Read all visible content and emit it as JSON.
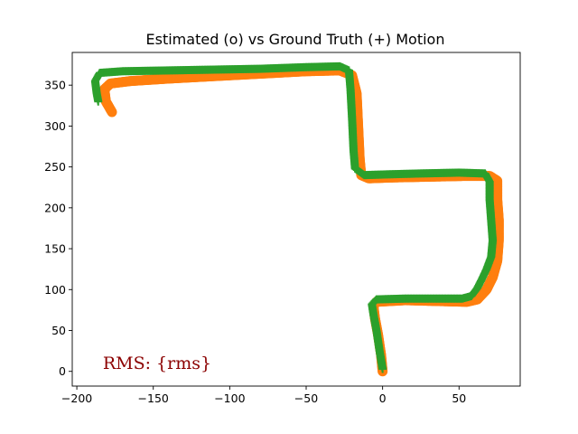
{
  "chart_data": {
    "type": "scatter",
    "title": "Estimated (o) vs Ground Truth (+) Motion",
    "xlabel": "",
    "ylabel": "",
    "xlim": [
      -203,
      90
    ],
    "ylim": [
      -18,
      390
    ],
    "xticks": [
      -200,
      -150,
      -100,
      -50,
      0,
      50
    ],
    "yticks": [
      0,
      50,
      100,
      150,
      200,
      250,
      300,
      350
    ],
    "grid": false,
    "legend": "none",
    "annotation": {
      "text": "RMS: {rms}",
      "color": "#8b0000",
      "x": -183,
      "y": 5
    },
    "series": [
      {
        "marker": "o",
        "color": "#ff7f0e",
        "points": [
          [
            0,
            0
          ],
          [
            -1,
            20
          ],
          [
            -3,
            45
          ],
          [
            -5,
            65
          ],
          [
            -6,
            80
          ],
          [
            -4,
            85
          ],
          [
            15,
            87
          ],
          [
            35,
            86
          ],
          [
            55,
            85
          ],
          [
            62,
            88
          ],
          [
            68,
            100
          ],
          [
            72,
            115
          ],
          [
            75,
            135
          ],
          [
            76,
            160
          ],
          [
            76,
            185
          ],
          [
            75,
            210
          ],
          [
            75,
            233
          ],
          [
            70,
            239
          ],
          [
            55,
            239
          ],
          [
            30,
            238
          ],
          [
            5,
            237
          ],
          [
            -9,
            236
          ],
          [
            -14,
            240
          ],
          [
            -15,
            260
          ],
          [
            -16,
            300
          ],
          [
            -17,
            340
          ],
          [
            -20,
            362
          ],
          [
            -28,
            368
          ],
          [
            -50,
            367
          ],
          [
            -80,
            364
          ],
          [
            -110,
            361
          ],
          [
            -140,
            358
          ],
          [
            -165,
            355
          ],
          [
            -178,
            352
          ],
          [
            -182,
            345
          ],
          [
            -181,
            330
          ],
          [
            -177,
            317
          ]
        ]
      },
      {
        "marker": "+",
        "color": "#2ca02c",
        "points": [
          [
            0,
            3
          ],
          [
            -2,
            25
          ],
          [
            -4,
            50
          ],
          [
            -6,
            70
          ],
          [
            -7,
            82
          ],
          [
            -4,
            88
          ],
          [
            15,
            89
          ],
          [
            35,
            89
          ],
          [
            52,
            89
          ],
          [
            58,
            92
          ],
          [
            62,
            102
          ],
          [
            65,
            113
          ],
          [
            68,
            125
          ],
          [
            71,
            140
          ],
          [
            72,
            160
          ],
          [
            71,
            185
          ],
          [
            70,
            210
          ],
          [
            70,
            232
          ],
          [
            67,
            242
          ],
          [
            50,
            243
          ],
          [
            25,
            242
          ],
          [
            5,
            241
          ],
          [
            -12,
            240
          ],
          [
            -18,
            248
          ],
          [
            -19,
            270
          ],
          [
            -20,
            310
          ],
          [
            -21,
            345
          ],
          [
            -22,
            368
          ],
          [
            -28,
            373
          ],
          [
            -50,
            372
          ],
          [
            -80,
            370
          ],
          [
            -110,
            369
          ],
          [
            -140,
            368
          ],
          [
            -170,
            367
          ],
          [
            -185,
            365
          ],
          [
            -188,
            355
          ],
          [
            -187,
            340
          ],
          [
            -186,
            330
          ]
        ]
      }
    ]
  }
}
